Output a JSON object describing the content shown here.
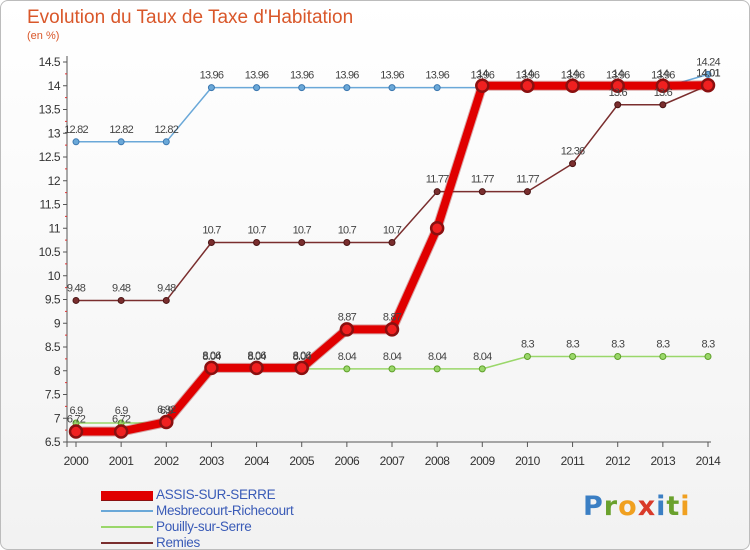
{
  "chart_data": {
    "type": "line",
    "title": "Evolution du Taux de Taxe d'Habitation",
    "subtitle": "(en %)",
    "x": [
      "2000",
      "2001",
      "2002",
      "2003",
      "2004",
      "2005",
      "2006",
      "2007",
      "2008",
      "2009",
      "2010",
      "2011",
      "2012",
      "2013",
      "2014"
    ],
    "ylim": [
      6.5,
      14.5
    ],
    "y_ticks": [
      "6.5",
      "7",
      "7.5",
      "8",
      "8.5",
      "9",
      "9.5",
      "10",
      "10.5",
      "11",
      "11.5",
      "12",
      "12.5",
      "13",
      "13.5",
      "14",
      "14.5"
    ],
    "grid": false,
    "series": [
      {
        "name": "ASSIS-SUR-SERRE",
        "color": "#e00000",
        "values": [
          6.72,
          6.72,
          6.92,
          8.06,
          8.06,
          8.06,
          8.87,
          8.87,
          11,
          14,
          14,
          14,
          14,
          14,
          14.01
        ],
        "labels": [
          "6.72",
          "6.72",
          "6.92",
          "8.06",
          "8.06",
          "8.06",
          "8.87",
          "8.87",
          "",
          "14",
          "14",
          "14",
          "14",
          "14",
          "14.01"
        ]
      },
      {
        "name": "Mesbrecourt-Richecourt",
        "color": "#6aa8d8",
        "values": [
          12.82,
          12.82,
          12.82,
          13.96,
          13.96,
          13.96,
          13.96,
          13.96,
          13.96,
          13.96,
          13.96,
          13.96,
          13.96,
          13.96,
          14.24
        ],
        "labels": [
          "12.82",
          "12.82",
          "12.82",
          "13.96",
          "13.96",
          "13.96",
          "13.96",
          "13.96",
          "13.96",
          "13.96",
          "13.96",
          "13.96",
          "13.96",
          "13.96",
          "14.24"
        ]
      },
      {
        "name": "Pouilly-sur-Serre",
        "color": "#9ad76a",
        "values": [
          6.9,
          6.9,
          6.9,
          8.04,
          8.04,
          8.04,
          8.04,
          8.04,
          8.04,
          8.04,
          8.3,
          8.3,
          8.3,
          8.3,
          8.3
        ],
        "labels": [
          "6.9",
          "6.9",
          "6.9",
          "8.04",
          "8.04",
          "8.04",
          "8.04",
          "8.04",
          "8.04",
          "8.04",
          "8.3",
          "8.3",
          "8.3",
          "8.3",
          "8.3"
        ]
      },
      {
        "name": "Remies",
        "color": "#7a2e2e",
        "values": [
          9.48,
          9.48,
          9.48,
          10.7,
          10.7,
          10.7,
          10.7,
          10.7,
          11.77,
          11.77,
          11.77,
          12.36,
          13.6,
          13.6,
          14.01
        ],
        "labels": [
          "9.48",
          "9.48",
          "9.48",
          "10.7",
          "10.7",
          "10.7",
          "10.7",
          "10.7",
          "11.77",
          "11.77",
          "11.77",
          "12.36",
          "13.6",
          "13.6",
          "14.01"
        ]
      }
    ]
  },
  "brand": {
    "letters": [
      {
        "ch": "P",
        "color": "#3b7fc4"
      },
      {
        "ch": "r",
        "color": "#6aa12d"
      },
      {
        "ch": "o",
        "color": "#f0a020"
      },
      {
        "ch": "x",
        "color": "#d93a2a"
      },
      {
        "ch": "i",
        "color": "#3b7fc4"
      },
      {
        "ch": "t",
        "color": "#6aa12d"
      },
      {
        "ch": "i",
        "color": "#f0a020"
      }
    ]
  }
}
